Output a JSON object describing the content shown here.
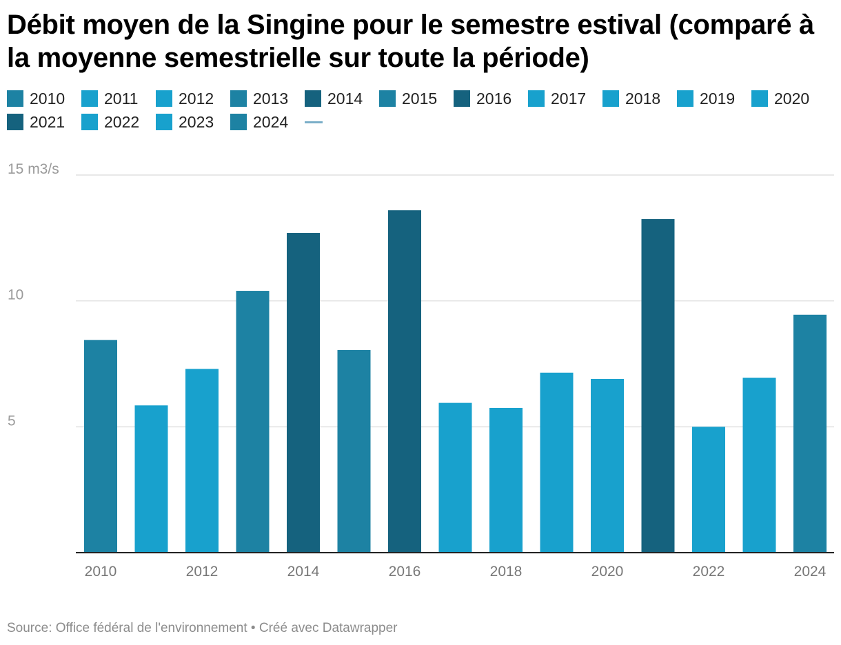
{
  "chart_data": {
    "type": "bar",
    "title": "Débit moyen de la Singine pour le semestre estival (comparé à la moyenne semestrielle sur toute la période)",
    "categories": [
      "2010",
      "2011",
      "2012",
      "2013",
      "2014",
      "2015",
      "2016",
      "2017",
      "2018",
      "2019",
      "2020",
      "2021",
      "2022",
      "2023",
      "2024"
    ],
    "values": [
      8.45,
      5.85,
      7.3,
      10.4,
      12.7,
      8.05,
      13.6,
      5.95,
      5.75,
      7.15,
      6.9,
      13.25,
      5.0,
      6.95,
      9.45
    ],
    "colors": [
      "#1d82a3",
      "#18a1cd",
      "#18a1cd",
      "#1d82a3",
      "#15627e",
      "#1d82a3",
      "#15627e",
      "#18a1cd",
      "#18a1cd",
      "#18a1cd",
      "#18a1cd",
      "#15627e",
      "#18a1cd",
      "#18a1cd",
      "#1d82a3"
    ],
    "ylim": [
      0,
      15
    ],
    "yticks": [
      5,
      10,
      15
    ],
    "ytick_labels": [
      "5",
      "10",
      "15 m3/s"
    ],
    "xtick_labels": [
      "2010",
      "2012",
      "2014",
      "2016",
      "2018",
      "2020",
      "2022",
      "2024"
    ],
    "xlabel": "",
    "ylabel": "m3/s",
    "grid": true,
    "legend_position": "top-left"
  },
  "source": "Source: Office fédéral de l'environnement • Créé avec Datawrapper"
}
